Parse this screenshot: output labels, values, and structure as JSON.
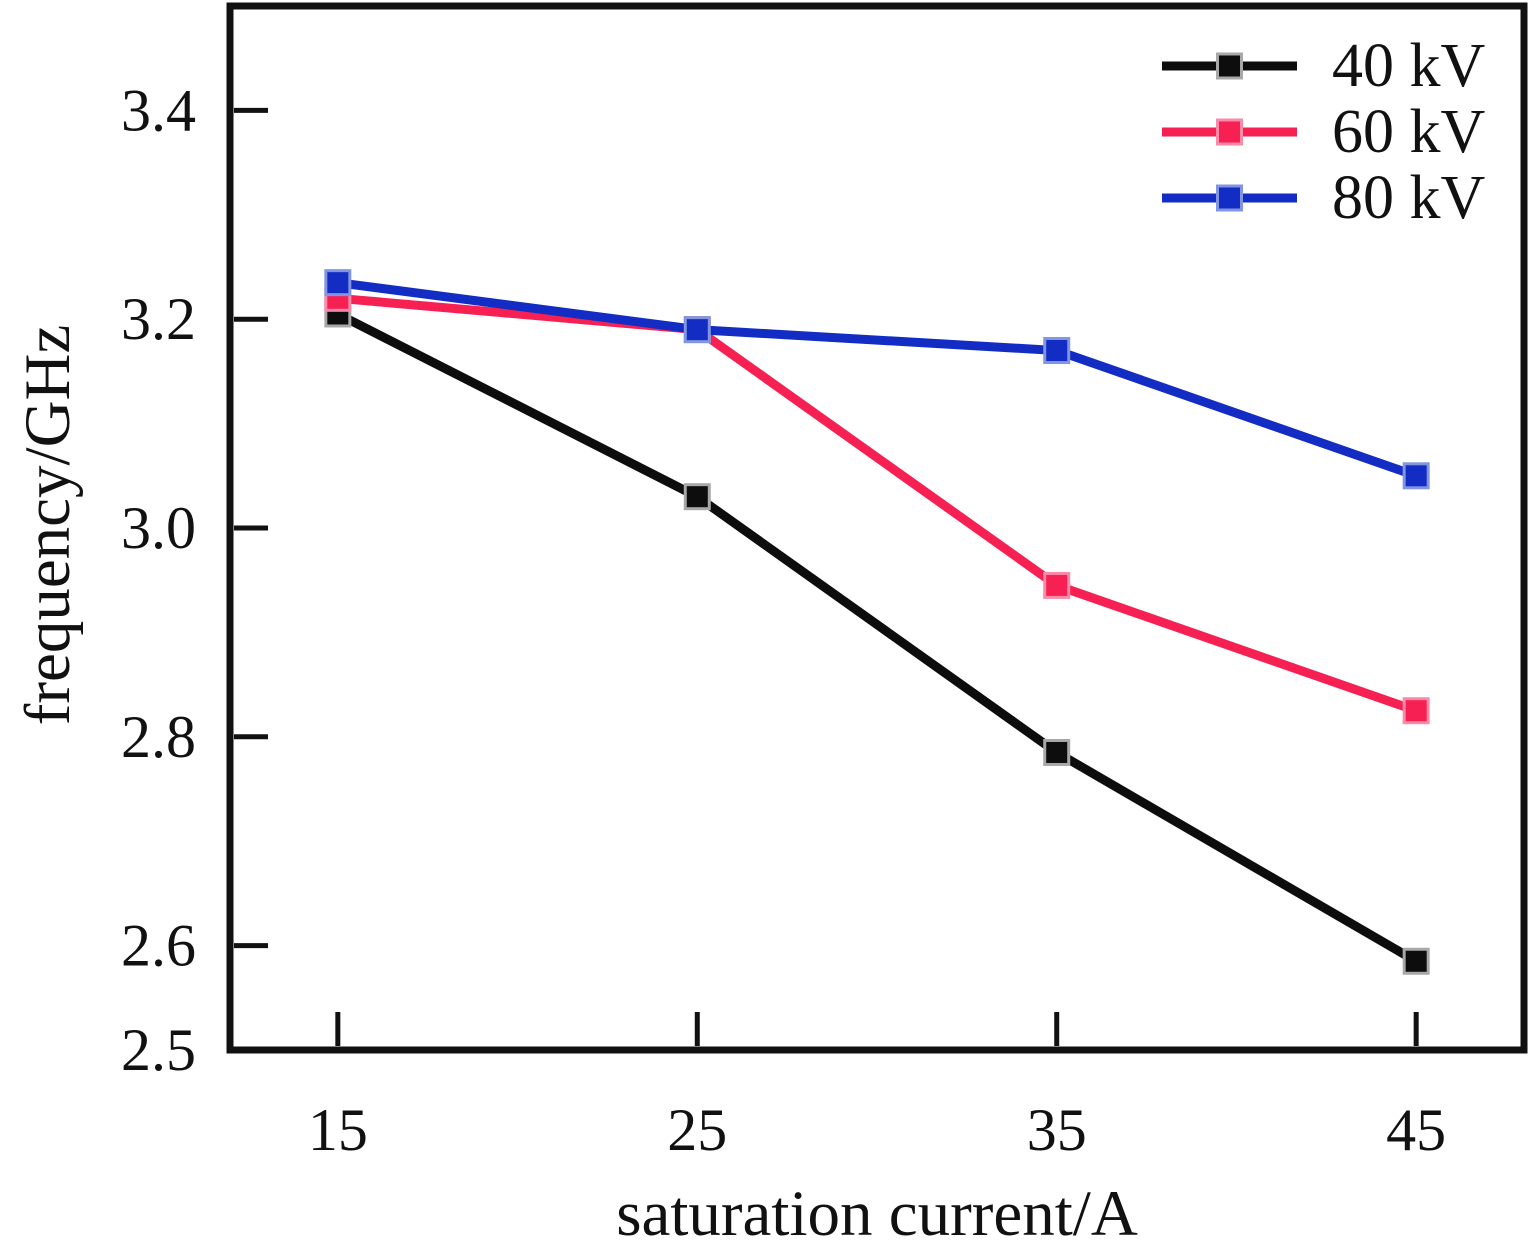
{
  "figure": {
    "background_color": "#ffffff",
    "axes_color": "#111111"
  },
  "chart_data": {
    "type": "line",
    "title": "",
    "xlabel": "saturation current/A",
    "ylabel": "frequency/GHz",
    "xlim": [
      12,
      48
    ],
    "ylim": [
      2.5,
      3.5
    ],
    "xticks": [
      15,
      25,
      35,
      45
    ],
    "xtick_labels": [
      "15",
      "25",
      "35",
      "45"
    ],
    "yticks": [
      2.5,
      2.6,
      2.8,
      3.0,
      3.2,
      3.4
    ],
    "ytick_labels": [
      "2.5",
      "2.6",
      "2.8",
      "3.0",
      "3.2",
      "3.4"
    ],
    "grid": false,
    "marker": "square",
    "legend_position": "top-right",
    "x": [
      15,
      25,
      35,
      45
    ],
    "series": [
      {
        "name": "40 kV",
        "color": "#0d0d0d",
        "marker_edge": "#a8a8a8",
        "values": [
          3.205,
          3.03,
          2.785,
          2.585
        ]
      },
      {
        "name": "60 kV",
        "color": "#f62052",
        "marker_edge": "#fa8aa8",
        "values": [
          3.22,
          3.19,
          2.945,
          2.825
        ]
      },
      {
        "name": "80 kV",
        "color": "#122cc4",
        "marker_edge": "#8295e0",
        "values": [
          3.235,
          3.19,
          3.17,
          3.05
        ]
      }
    ]
  }
}
